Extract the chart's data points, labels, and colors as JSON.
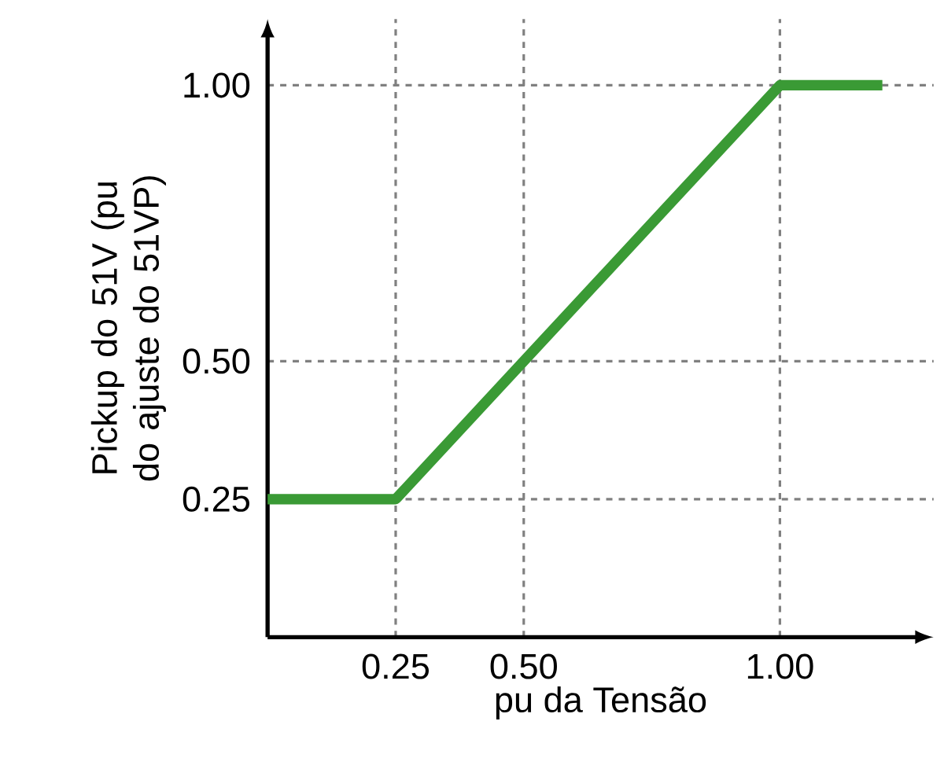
{
  "chart_data": {
    "type": "line",
    "xlabel": "pu da Tensão",
    "ylabel": "Pickup do 51V (pu do ajuste do 51VP)",
    "x": [
      0,
      0.25,
      1.0,
      1.2
    ],
    "series": [
      {
        "color": "#3a9a35",
        "values": [
          0.25,
          0.25,
          1.0,
          1.0
        ]
      }
    ],
    "xlim": [
      0,
      1.3
    ],
    "ylim": [
      0,
      1.12
    ],
    "xticks": [
      {
        "value": 0.25,
        "label": "0.25"
      },
      {
        "value": 0.5,
        "label": "0.50"
      },
      {
        "value": 1.0,
        "label": "1.00"
      }
    ],
    "yticks": [
      {
        "value": 0.25,
        "label": "0.25"
      },
      {
        "value": 0.5,
        "label": "0.50"
      },
      {
        "value": 1.0,
        "label": "1.00"
      }
    ],
    "grid": true,
    "marker": "none",
    "line_style": "solid"
  }
}
